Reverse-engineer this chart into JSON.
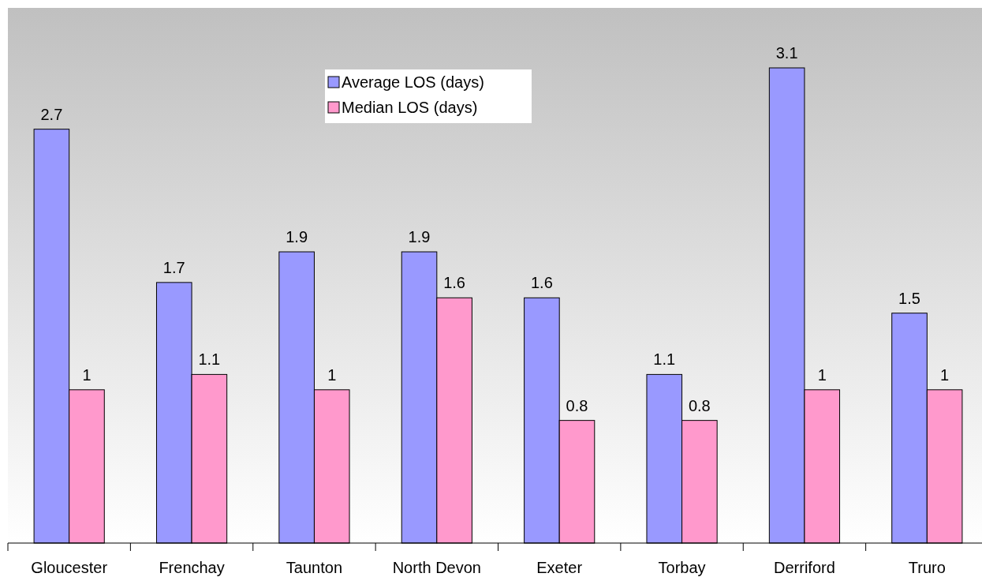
{
  "chart_data": {
    "type": "bar",
    "categories": [
      "Gloucester",
      "Frenchay",
      "Taunton",
      "North Devon",
      "Exeter",
      "Torbay",
      "Derriford",
      "Truro"
    ],
    "series": [
      {
        "name": "Average LOS (days)",
        "color": "#9999ff",
        "values": [
          2.7,
          1.7,
          1.9,
          1.9,
          1.6,
          1.1,
          3.1,
          1.5
        ]
      },
      {
        "name": "Median LOS (days)",
        "color": "#ff99cc",
        "values": [
          1,
          1.1,
          1,
          1.6,
          0.8,
          0.8,
          1,
          1
        ]
      }
    ],
    "data_labels": true,
    "legend": "top"
  }
}
